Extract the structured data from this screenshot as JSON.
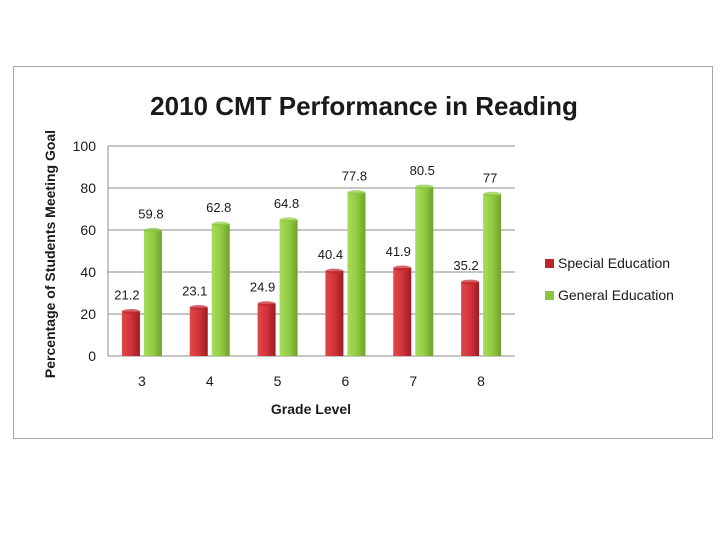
{
  "chart_data": {
    "type": "bar",
    "title": "2010 CMT Performance in Reading",
    "xlabel": "Grade Level",
    "ylabel": "Percentage of Students Meeting Goal",
    "categories": [
      "3",
      "4",
      "5",
      "6",
      "7",
      "8"
    ],
    "ylim": [
      0,
      100
    ],
    "yticks": [
      0,
      20,
      40,
      60,
      80,
      100
    ],
    "grid": true,
    "legend_position": "right",
    "series": [
      {
        "name": "Special Education",
        "values": [
          21.2,
          23.1,
          24.9,
          40.4,
          41.9,
          35.2
        ],
        "labels": [
          "21.2",
          "23.1",
          "24.9",
          "40.4",
          "41.9",
          "35.2"
        ],
        "color": "#c0272d"
      },
      {
        "name": "General Education",
        "values": [
          59.8,
          62.8,
          64.8,
          77.8,
          80.5,
          77
        ],
        "labels": [
          "59.8",
          "62.8",
          "64.8",
          "77.8",
          "80.5",
          "77"
        ],
        "color": "#8cc63f"
      }
    ]
  }
}
